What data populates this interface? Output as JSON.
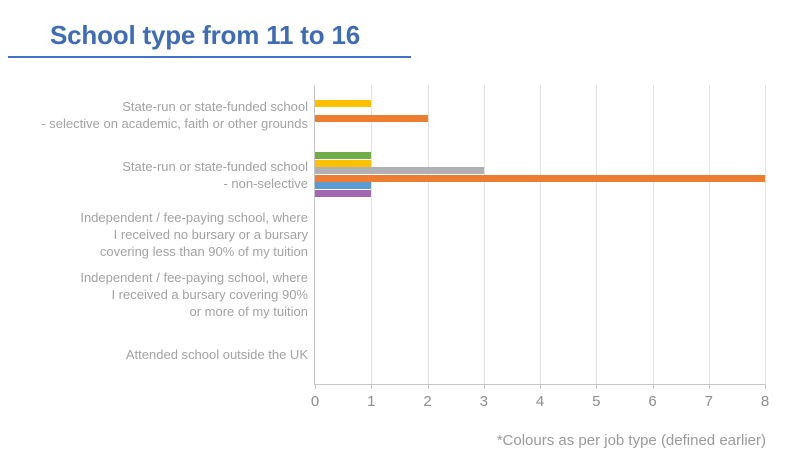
{
  "title": {
    "text": "School type from 11 to 16"
  },
  "footnote": "*Colours as per job type (defined earlier)",
  "accent_colors": {
    "title_blue": "#3E6CB6",
    "underline_blue": "#4472C4",
    "label_gray": "#A3A3A3",
    "tick_gray": "#8E8E8E",
    "gridline_gray": "#E4E4E4",
    "axis_gray": "#C6C6C6"
  },
  "chart_data": {
    "type": "bar",
    "orientation": "horizontal",
    "title": "School type from 11 to 16",
    "xlabel": "",
    "ylabel": "",
    "xlim": [
      0,
      8
    ],
    "xticks": [
      0,
      1,
      2,
      3,
      4,
      5,
      6,
      7,
      8
    ],
    "grid": true,
    "legend_position": "none",
    "legend_note": "*Colours as per job type (defined earlier)",
    "categories": [
      "State-run or state-funded school - selective on academic, faith or other grounds",
      "State-run or state-funded school - non-selective",
      "Independent / fee-paying school, where I received no bursary or a bursary covering less than 90% of my tuition",
      "Independent / fee-paying school, where I received a bursary covering 90% or more of my tuition",
      "Attended school outside the UK"
    ],
    "category_label_lines": [
      [
        "State-run or state-funded school",
        "- selective on academic, faith or other grounds"
      ],
      [
        "State-run or state-funded school",
        "- non-selective"
      ],
      [
        "Independent / fee-paying school, where",
        "I received no bursary or a bursary",
        "covering less than 90% of my tuition"
      ],
      [
        "Independent / fee-paying school, where",
        "I received a bursary covering 90%",
        "or more of my tuition"
      ],
      [
        "Attended school outside the UK"
      ]
    ],
    "series": [
      {
        "name": "green job type",
        "color": "#70AD47",
        "values": [
          0,
          1,
          0,
          0,
          0
        ]
      },
      {
        "name": "yellow job type",
        "color": "#FFC000",
        "values": [
          1,
          1,
          0,
          0,
          0
        ]
      },
      {
        "name": "grey job type",
        "color": "#B1B1B3",
        "values": [
          0,
          3,
          0,
          0,
          0
        ]
      },
      {
        "name": "orange job type",
        "color": "#ED7D31",
        "values": [
          2,
          8,
          0,
          0,
          0
        ]
      },
      {
        "name": "blue job type",
        "color": "#5B9BD5",
        "values": [
          0,
          1,
          0,
          0,
          0
        ]
      },
      {
        "name": "purple job type",
        "color": "#A069AF",
        "values": [
          0,
          1,
          0,
          0,
          0
        ]
      }
    ]
  }
}
